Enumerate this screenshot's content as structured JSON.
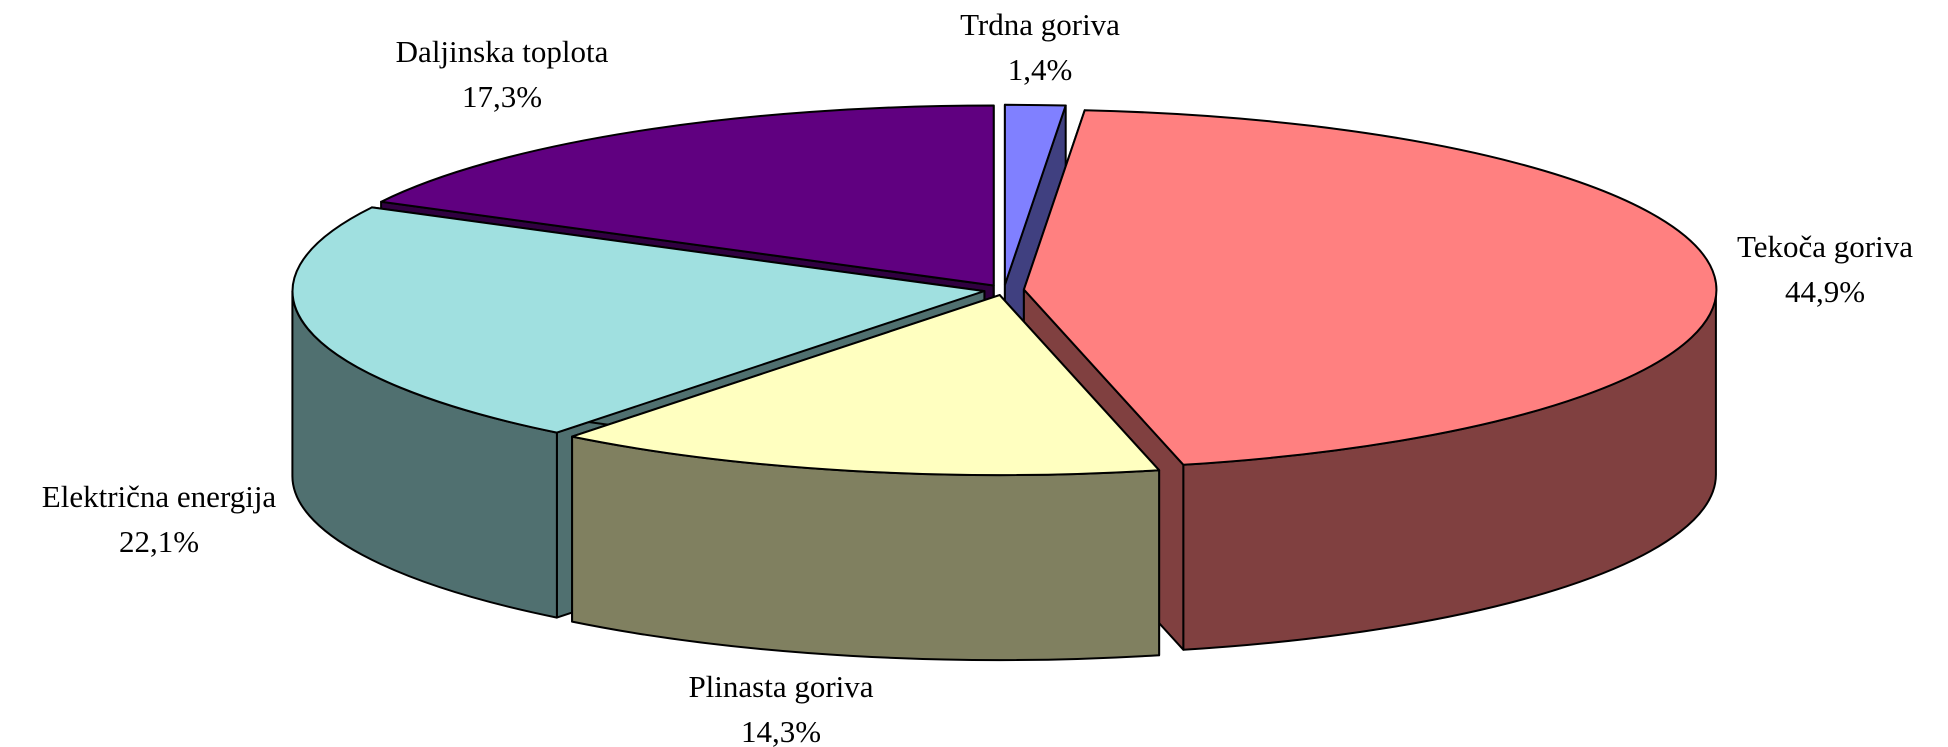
{
  "chart_data": {
    "type": "pie3d",
    "categories": [
      "Trdna goriva",
      "Tekoča goriva",
      "Plinasta goriva",
      "Električna energija",
      "Daljinska toplota"
    ],
    "values": [
      1.4,
      44.9,
      14.3,
      22.1,
      17.3
    ],
    "value_labels": [
      "1,4%",
      "44,9%",
      "14,3%",
      "22,1%",
      "17,3%"
    ],
    "colors": [
      "#8080ff",
      "#ff8080",
      "#ffffc0",
      "#a0e0e0",
      "#600080"
    ]
  }
}
